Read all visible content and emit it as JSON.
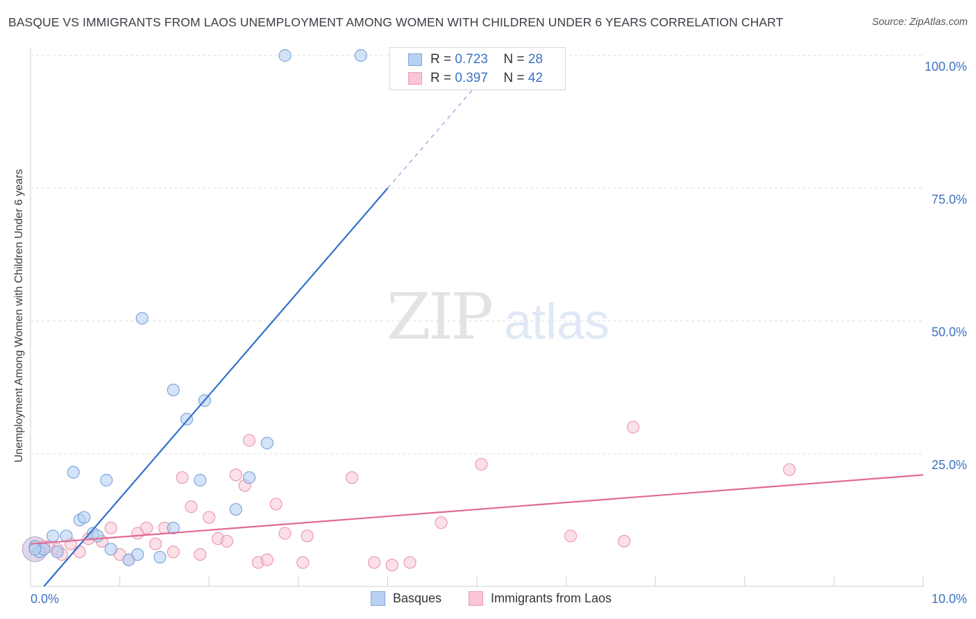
{
  "title": "BASQUE VS IMMIGRANTS FROM LAOS UNEMPLOYMENT AMONG WOMEN WITH CHILDREN UNDER 6 YEARS CORRELATION CHART",
  "source": "Source: ZipAtlas.com",
  "watermark": {
    "zip": "ZIP",
    "atlas": "atlas"
  },
  "legend": {
    "r_label": "R =",
    "n_label": "N =",
    "series": [
      {
        "name": "Basques",
        "r": "0.723",
        "n": "28"
      },
      {
        "name": "Immigrants from Laos",
        "r": "0.397",
        "n": "42"
      }
    ]
  },
  "colors": {
    "blue_fill": "#b8d1f2",
    "blue_stroke": "#7ea5db",
    "blue_line": "#2f6fce",
    "pink_fill": "#f8c6d4",
    "pink_stroke": "#eb9ab3",
    "pink_line": "#e06a95",
    "grid": "#dddde3",
    "tick_label": "#3d72c4"
  },
  "chart_data": {
    "type": "scatter",
    "title": "BASQUE VS IMMIGRANTS FROM LAOS UNEMPLOYMENT AMONG WOMEN WITH CHILDREN UNDER 6 YEARS CORRELATION CHART",
    "xlabel": "",
    "ylabel": "Unemployment Among Women with Children Under 6 years",
    "xlim": [
      0,
      10
    ],
    "ylim": [
      0,
      100
    ],
    "x_tick_labels": [
      "0.0%",
      "10.0%"
    ],
    "y_ticks": [
      25,
      50,
      75,
      100
    ],
    "y_tick_labels": [
      "25.0%",
      "50.0%",
      "75.0%",
      "100.0%"
    ],
    "series": [
      {
        "name": "Basques",
        "r": 0.723,
        "n": 28,
        "points": [
          [
            0.05,
            7.5
          ],
          [
            0.1,
            6.5
          ],
          [
            0.15,
            7.0
          ],
          [
            0.25,
            9.5
          ],
          [
            0.3,
            6.5
          ],
          [
            0.4,
            9.5
          ],
          [
            0.48,
            21.5
          ],
          [
            0.55,
            12.5
          ],
          [
            0.6,
            13.0
          ],
          [
            0.7,
            10.0
          ],
          [
            0.75,
            9.5
          ],
          [
            0.85,
            20.0
          ],
          [
            0.9,
            7.0
          ],
          [
            1.1,
            5.0
          ],
          [
            1.2,
            6.0
          ],
          [
            1.25,
            50.5
          ],
          [
            1.45,
            5.5
          ],
          [
            1.6,
            11.0
          ],
          [
            1.6,
            37.0
          ],
          [
            1.75,
            31.5
          ],
          [
            1.9,
            20.0
          ],
          [
            1.95,
            35.0
          ],
          [
            2.3,
            14.5
          ],
          [
            2.45,
            20.5
          ],
          [
            2.65,
            27.0
          ],
          [
            2.85,
            100.0
          ],
          [
            3.7,
            100.0
          ],
          [
            0.05,
            7.0
          ]
        ],
        "trend": {
          "x": [
            0.15,
            4.0
          ],
          "y": [
            0.0,
            75.0
          ],
          "dashed_to": [
            5.0,
            94.5
          ]
        }
      },
      {
        "name": "Immigrants from Laos",
        "r": 0.397,
        "n": 42,
        "points": [
          [
            0.05,
            7.5
          ],
          [
            0.15,
            7.5
          ],
          [
            0.3,
            7.0
          ],
          [
            0.35,
            6.0
          ],
          [
            0.45,
            8.0
          ],
          [
            0.55,
            6.5
          ],
          [
            0.65,
            9.0
          ],
          [
            0.8,
            8.5
          ],
          [
            0.9,
            11.0
          ],
          [
            1.0,
            6.0
          ],
          [
            1.1,
            5.0
          ],
          [
            1.2,
            10.0
          ],
          [
            1.3,
            11.0
          ],
          [
            1.4,
            8.0
          ],
          [
            1.5,
            11.0
          ],
          [
            1.6,
            6.5
          ],
          [
            1.7,
            20.5
          ],
          [
            1.8,
            15.0
          ],
          [
            1.9,
            6.0
          ],
          [
            2.0,
            13.0
          ],
          [
            2.1,
            9.0
          ],
          [
            2.2,
            8.5
          ],
          [
            2.3,
            21.0
          ],
          [
            2.4,
            19.0
          ],
          [
            2.45,
            27.5
          ],
          [
            2.55,
            4.5
          ],
          [
            2.65,
            5.0
          ],
          [
            2.75,
            15.5
          ],
          [
            2.85,
            10.0
          ],
          [
            3.05,
            4.5
          ],
          [
            3.1,
            9.5
          ],
          [
            3.6,
            20.5
          ],
          [
            3.85,
            4.5
          ],
          [
            4.05,
            4.0
          ],
          [
            4.25,
            4.5
          ],
          [
            4.6,
            12.0
          ],
          [
            5.05,
            23.0
          ],
          [
            6.05,
            9.5
          ],
          [
            6.75,
            30.0
          ],
          [
            6.65,
            8.5
          ],
          [
            8.5,
            22.0
          ],
          [
            0.2,
            7.5
          ]
        ],
        "trend": {
          "x": [
            0.0,
            10.0
          ],
          "y": [
            8.0,
            21.0
          ]
        }
      }
    ]
  }
}
